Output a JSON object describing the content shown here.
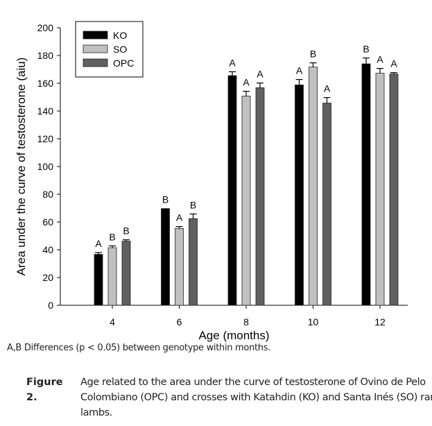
{
  "chart_data": {
    "type": "bar",
    "title": "",
    "xlabel": "Age (months)",
    "ylabel": "Area under the curve of testosterone (aiu)",
    "ylim": [
      0,
      200
    ],
    "yticks": [
      0,
      20,
      40,
      60,
      80,
      100,
      120,
      140,
      160,
      180,
      200
    ],
    "categories": [
      "4",
      "6",
      "8",
      "10",
      "12"
    ],
    "legend_position": "top-left",
    "grid": false,
    "series": [
      {
        "name": "KO",
        "color": "#000000",
        "values": [
          36.7,
          69.7,
          165.5,
          158.8,
          174.0
        ],
        "error": [
          1.3,
          0,
          2.8,
          3.9,
          4.2
        ],
        "letters": [
          "A",
          "B",
          "A",
          "A",
          "B"
        ]
      },
      {
        "name": "SO",
        "color": "#c0c0c0",
        "values": [
          41.5,
          55.3,
          150.8,
          171.7,
          167.2
        ],
        "error": [
          1.3,
          1.4,
          3.4,
          3.0,
          3.5
        ],
        "letters": [
          "B",
          "A",
          "A",
          "B",
          "A"
        ]
      },
      {
        "name": "OPC",
        "color": "#606060",
        "values": [
          46.2,
          62.5,
          156.8,
          145.7,
          166.7
        ],
        "error": [
          1.0,
          3.3,
          3.4,
          4.0,
          1.0
        ],
        "letters": [
          "B",
          "B",
          "A",
          "A",
          "A"
        ]
      }
    ]
  },
  "note": "A,B  Differences (p < 0.05) between genotype within months.",
  "caption": {
    "label": "Figure 2.",
    "text": "Age related to the area under the curve of testosterone of Ovino de Pelo Colombiano (OPC) and crosses with Katahdin (KO) and Santa Inés  (SO) ram lambs."
  }
}
